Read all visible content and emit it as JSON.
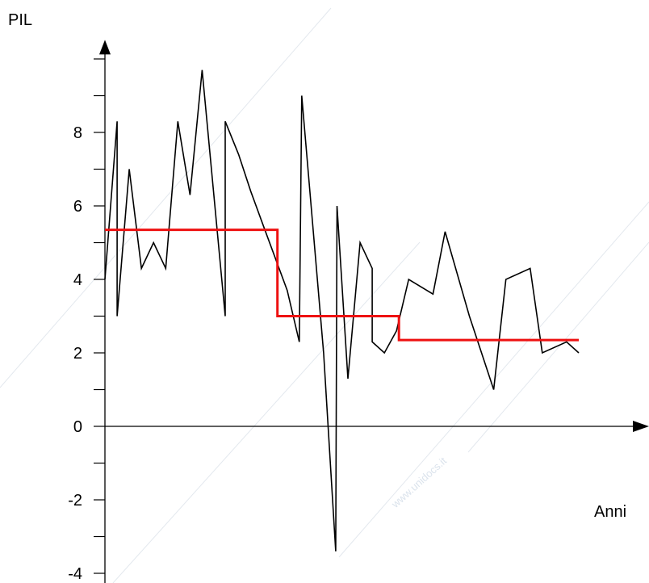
{
  "chart_data": {
    "type": "line",
    "ylabel": "PIL",
    "xlabel": "Anni",
    "yticks": [
      -4,
      -2,
      0,
      2,
      4,
      6,
      8
    ],
    "ylim": [
      -4.3,
      10.3
    ],
    "xlim": [
      0,
      40
    ],
    "grid": false,
    "series": [
      {
        "type": "line",
        "color": "#000000",
        "points": [
          [
            0,
            4
          ],
          [
            1,
            8.3
          ],
          [
            1,
            3
          ],
          [
            2,
            7
          ],
          [
            3,
            4.3
          ],
          [
            4,
            5
          ],
          [
            5,
            4.3
          ],
          [
            6,
            8.3
          ],
          [
            7,
            6.3
          ],
          [
            8,
            9.7
          ],
          [
            9.9,
            3
          ],
          [
            9.9,
            8.3
          ],
          [
            11,
            7.4
          ],
          [
            12,
            6.4
          ],
          [
            13,
            5.5
          ],
          [
            14,
            4.6
          ],
          [
            15,
            3.7
          ],
          [
            16,
            2.3
          ],
          [
            16.2,
            9
          ],
          [
            18,
            2
          ],
          [
            19,
            -3.4
          ],
          [
            19.1,
            6
          ],
          [
            20,
            1.3
          ],
          [
            21,
            5
          ],
          [
            22,
            4.3
          ],
          [
            22,
            2.3
          ],
          [
            23,
            2
          ],
          [
            24,
            2.6
          ],
          [
            25,
            4
          ],
          [
            27,
            3.6
          ],
          [
            28,
            5.3
          ],
          [
            30,
            3
          ],
          [
            32,
            1
          ],
          [
            33,
            4
          ],
          [
            35,
            4.3
          ],
          [
            36,
            2
          ],
          [
            38,
            2.3
          ],
          [
            39,
            2
          ]
        ]
      },
      {
        "type": "step",
        "color": "#ee1111",
        "points": [
          [
            0,
            5.35
          ],
          [
            14.2,
            5.35
          ],
          [
            14.2,
            3
          ],
          [
            24.2,
            3
          ],
          [
            24.2,
            2.35
          ],
          [
            39,
            2.35
          ]
        ]
      }
    ]
  },
  "watermark": {
    "text": "www.unidocs.it"
  }
}
